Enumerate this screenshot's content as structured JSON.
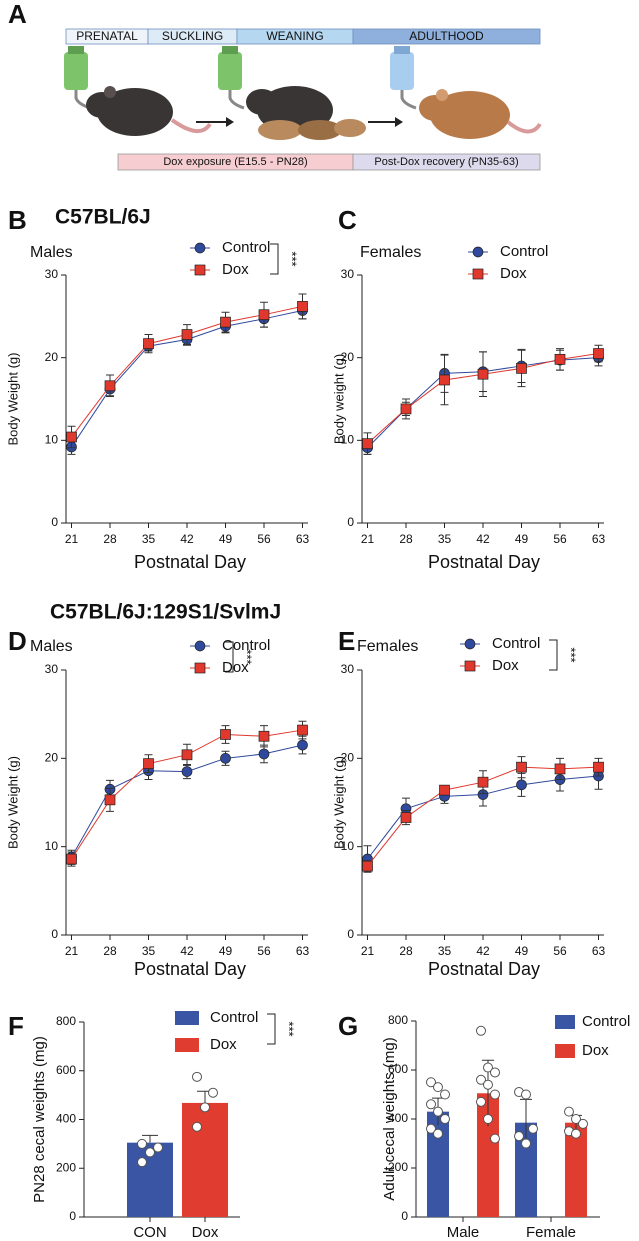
{
  "timeline": {
    "label": "A",
    "stages": [
      "PRENATAL",
      "SUCKLING",
      "WEANING",
      "ADULTHOOD"
    ],
    "phases": [
      "Dox exposure (E15.5 - PN28)",
      "Post-Dox recovery (PN35-63)"
    ]
  },
  "chart_data": [
    {
      "type": "line",
      "label": "B",
      "group_title": "C57BL/6J",
      "subtitle": "Males",
      "x_label": "Postnatal Day",
      "y_label": "Body Weight (g)",
      "annotation": "***",
      "x": [
        21,
        28,
        35,
        42,
        49,
        56,
        63
      ],
      "xlim": [
        20,
        64
      ],
      "xticks": [
        21,
        28,
        35,
        42,
        49,
        56,
        63
      ],
      "ylim": [
        0,
        30
      ],
      "yticks": [
        0,
        10,
        20,
        30
      ],
      "series": [
        {
          "name": "Control",
          "color": "#2f4a9c",
          "marker": "circle",
          "values": [
            9.2,
            16.2,
            21.4,
            22.2,
            23.8,
            24.7,
            25.7
          ],
          "errors": [
            0.9,
            0.8,
            0.6,
            0.7,
            0.8,
            1.0,
            1.0
          ]
        },
        {
          "name": "Dox",
          "color": "#e0382d",
          "marker": "square",
          "values": [
            10.4,
            16.6,
            21.7,
            22.8,
            24.3,
            25.2,
            26.2
          ],
          "errors": [
            1.3,
            1.3,
            1.1,
            1.2,
            1.2,
            1.5,
            1.5
          ]
        }
      ]
    },
    {
      "type": "line",
      "label": "C",
      "subtitle": "Females",
      "x_label": "Postnatal Day",
      "y_label": "Body weight (g)",
      "x": [
        21,
        28,
        35,
        42,
        49,
        56,
        63
      ],
      "xlim": [
        20,
        64
      ],
      "xticks": [
        21,
        28,
        35,
        42,
        49,
        56,
        63
      ],
      "ylim": [
        0,
        30
      ],
      "yticks": [
        0,
        10,
        20,
        30
      ],
      "series": [
        {
          "name": "Control",
          "color": "#2f4a9c",
          "marker": "circle",
          "values": [
            9.1,
            13.8,
            18.1,
            18.3,
            19.0,
            19.7,
            20.0
          ],
          "errors": [
            0.8,
            0.8,
            2.3,
            2.4,
            2.0,
            1.2,
            1.0
          ]
        },
        {
          "name": "Dox",
          "color": "#e0382d",
          "marker": "square",
          "values": [
            9.6,
            13.8,
            17.3,
            18.0,
            18.7,
            19.8,
            20.5
          ],
          "errors": [
            1.3,
            1.2,
            3.0,
            2.7,
            2.2,
            1.3,
            1.0
          ]
        }
      ]
    },
    {
      "type": "line",
      "label": "D",
      "group_title": "C57BL/6J:129S1/SvlmJ",
      "subtitle": "Males",
      "x_label": "Postnatal Day",
      "y_label": "Body Weight (g)",
      "annotation": "***",
      "x": [
        21,
        28,
        35,
        42,
        49,
        56,
        63
      ],
      "xlim": [
        20,
        64
      ],
      "xticks": [
        21,
        28,
        35,
        42,
        49,
        56,
        63
      ],
      "ylim": [
        0,
        30
      ],
      "yticks": [
        0,
        10,
        20,
        30
      ],
      "series": [
        {
          "name": "Control",
          "color": "#2f4a9c",
          "marker": "circle",
          "values": [
            8.8,
            16.5,
            18.6,
            18.5,
            20.0,
            20.5,
            21.5
          ],
          "errors": [
            0.8,
            1.0,
            1.0,
            0.8,
            0.8,
            1.0,
            1.0
          ]
        },
        {
          "name": "Dox",
          "color": "#e0382d",
          "marker": "square",
          "values": [
            8.6,
            15.3,
            19.4,
            20.4,
            22.7,
            22.5,
            23.2
          ],
          "errors": [
            0.8,
            1.3,
            1.0,
            1.2,
            1.0,
            1.2,
            1.0
          ]
        }
      ]
    },
    {
      "type": "line",
      "label": "E",
      "subtitle": "Females",
      "x_label": "Postnatal Day",
      "y_label": "Body Weight (g)",
      "annotation": "***",
      "x": [
        21,
        28,
        35,
        42,
        49,
        56,
        63
      ],
      "xlim": [
        20,
        64
      ],
      "xticks": [
        21,
        28,
        35,
        42,
        49,
        56,
        63
      ],
      "ylim": [
        0,
        30
      ],
      "yticks": [
        0,
        10,
        20,
        30
      ],
      "series": [
        {
          "name": "Control",
          "color": "#2f4a9c",
          "marker": "circle",
          "values": [
            8.6,
            14.3,
            15.7,
            15.9,
            17.0,
            17.6,
            18.0
          ],
          "errors": [
            1.5,
            1.2,
            0.8,
            1.3,
            1.3,
            1.3,
            1.5
          ]
        },
        {
          "name": "Dox",
          "color": "#e0382d",
          "marker": "square",
          "values": [
            7.8,
            13.3,
            16.4,
            17.3,
            19.0,
            18.8,
            19.0
          ],
          "errors": [
            0.6,
            0.8,
            0.5,
            1.3,
            1.2,
            1.2,
            1.0
          ]
        }
      ]
    },
    {
      "type": "bar",
      "label": "F",
      "y_label": "PN28 cecal weights (mg)",
      "annotation": "***",
      "categories": [
        "CON",
        "Dox"
      ],
      "legend": [
        "Control",
        "Dox"
      ],
      "colors": [
        "#3b55a5",
        "#e03c2f"
      ],
      "values": [
        305,
        468
      ],
      "errors": [
        30,
        48
      ],
      "points": [
        [
          225,
          265,
          285,
          300
        ],
        [
          370,
          450,
          510,
          575
        ]
      ],
      "ylim": [
        0,
        800
      ],
      "yticks": [
        0,
        200,
        400,
        600,
        800
      ]
    },
    {
      "type": "grouped_bar",
      "label": "G",
      "y_label": "Adult cecal weights (mg)",
      "categories": [
        "Male",
        "Female"
      ],
      "ylim": [
        0,
        800
      ],
      "yticks": [
        0,
        200,
        400,
        600,
        800
      ],
      "series": [
        {
          "name": "Control",
          "color": "#3b55a5",
          "values": [
            430,
            385
          ],
          "errors": [
            55,
            95
          ],
          "points": [
            [
              550,
              530,
              500,
              460,
              430,
              400,
              360,
              340
            ],
            [
              510,
              500,
              360,
              330,
              300
            ]
          ]
        },
        {
          "name": "Dox",
          "color": "#e03c2f",
          "values": [
            505,
            385
          ],
          "errors": [
            135,
            30
          ],
          "points": [
            [
              760,
              610,
              590,
              560,
              540,
              500,
              470,
              400,
              320
            ],
            [
              430,
              400,
              380,
              350,
              340
            ]
          ]
        }
      ]
    }
  ]
}
